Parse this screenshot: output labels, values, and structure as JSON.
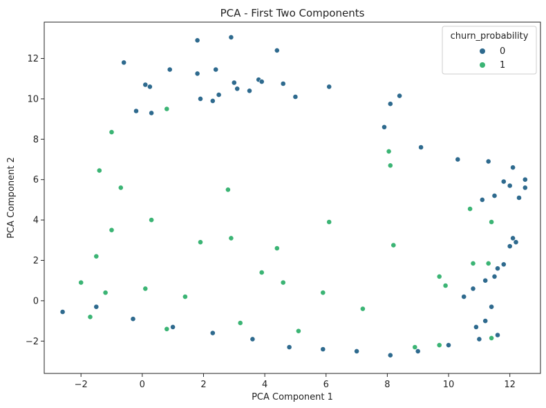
{
  "chart_data": {
    "type": "scatter",
    "title": "PCA - First Two Components",
    "xlabel": "PCA Component 1",
    "ylabel": "PCA Component 2",
    "xlim": [
      -3.2,
      13.0
    ],
    "ylim": [
      -3.6,
      13.8
    ],
    "x_ticks": [
      -2,
      0,
      2,
      4,
      6,
      8,
      10,
      12
    ],
    "y_ticks": [
      -2,
      0,
      2,
      4,
      6,
      8,
      10,
      12
    ],
    "grid": false,
    "legend": {
      "title": "churn_probability",
      "placement": "top-right",
      "entries": [
        {
          "label": "0",
          "color": "#2e6a8e"
        },
        {
          "label": "1",
          "color": "#3bb474"
        }
      ]
    },
    "series": [
      {
        "name": "0",
        "color": "#2e6a8e",
        "points": [
          [
            -0.6,
            11.8
          ],
          [
            1.8,
            12.9
          ],
          [
            2.9,
            13.05
          ],
          [
            4.4,
            12.4
          ],
          [
            0.9,
            11.45
          ],
          [
            1.8,
            11.25
          ],
          [
            2.4,
            11.45
          ],
          [
            3.8,
            10.95
          ],
          [
            3.9,
            10.85
          ],
          [
            4.6,
            10.75
          ],
          [
            0.1,
            10.7
          ],
          [
            0.25,
            10.6
          ],
          [
            3.0,
            10.8
          ],
          [
            3.1,
            10.5
          ],
          [
            3.5,
            10.4
          ],
          [
            6.1,
            10.6
          ],
          [
            8.4,
            10.15
          ],
          [
            8.1,
            9.75
          ],
          [
            1.9,
            10.0
          ],
          [
            2.3,
            9.9
          ],
          [
            2.5,
            10.2
          ],
          [
            5.0,
            10.1
          ],
          [
            -0.2,
            9.4
          ],
          [
            0.3,
            9.3
          ],
          [
            7.9,
            8.6
          ],
          [
            9.1,
            7.6
          ],
          [
            10.3,
            7.0
          ],
          [
            11.3,
            6.9
          ],
          [
            12.1,
            6.6
          ],
          [
            12.5,
            6.0
          ],
          [
            12.5,
            5.6
          ],
          [
            12.0,
            5.7
          ],
          [
            11.8,
            5.9
          ],
          [
            11.5,
            5.2
          ],
          [
            12.3,
            5.1
          ],
          [
            11.1,
            5.0
          ],
          [
            12.2,
            2.9
          ],
          [
            12.0,
            2.7
          ],
          [
            12.1,
            3.1
          ],
          [
            11.8,
            1.8
          ],
          [
            11.6,
            1.6
          ],
          [
            11.5,
            1.2
          ],
          [
            11.2,
            1.0
          ],
          [
            10.8,
            0.6
          ],
          [
            10.5,
            0.2
          ],
          [
            11.4,
            -0.3
          ],
          [
            11.2,
            -1.0
          ],
          [
            10.9,
            -1.3
          ],
          [
            -2.6,
            -0.55
          ],
          [
            -1.5,
            -0.3
          ],
          [
            -0.3,
            -0.9
          ],
          [
            1.0,
            -1.3
          ],
          [
            2.3,
            -1.6
          ],
          [
            3.6,
            -1.9
          ],
          [
            4.8,
            -2.3
          ],
          [
            5.9,
            -2.4
          ],
          [
            7.0,
            -2.5
          ],
          [
            8.1,
            -2.7
          ],
          [
            9.0,
            -2.5
          ],
          [
            10.0,
            -2.2
          ],
          [
            11.0,
            -1.9
          ],
          [
            11.6,
            -1.7
          ]
        ]
      },
      {
        "name": "1",
        "color": "#3bb474",
        "points": [
          [
            0.8,
            9.5
          ],
          [
            -1.0,
            8.35
          ],
          [
            8.05,
            7.4
          ],
          [
            8.1,
            6.7
          ],
          [
            -1.4,
            6.45
          ],
          [
            -0.7,
            5.6
          ],
          [
            2.8,
            5.5
          ],
          [
            10.7,
            4.55
          ],
          [
            11.4,
            3.9
          ],
          [
            6.1,
            3.9
          ],
          [
            0.3,
            4.0
          ],
          [
            -1.0,
            3.5
          ],
          [
            8.2,
            2.75
          ],
          [
            2.9,
            3.1
          ],
          [
            -1.5,
            2.2
          ],
          [
            -2.0,
            0.9
          ],
          [
            -1.2,
            0.4
          ],
          [
            0.1,
            0.6
          ],
          [
            1.4,
            0.2
          ],
          [
            3.9,
            1.4
          ],
          [
            4.6,
            0.9
          ],
          [
            5.9,
            0.4
          ],
          [
            7.2,
            -0.4
          ],
          [
            9.7,
            1.2
          ],
          [
            9.9,
            0.75
          ],
          [
            11.3,
            1.85
          ],
          [
            10.8,
            1.85
          ],
          [
            9.7,
            -2.2
          ],
          [
            8.9,
            -2.3
          ],
          [
            11.4,
            -1.85
          ],
          [
            5.1,
            -1.5
          ],
          [
            3.2,
            -1.1
          ],
          [
            0.8,
            -1.4
          ],
          [
            -1.7,
            -0.8
          ],
          [
            1.9,
            2.9
          ],
          [
            4.4,
            2.6
          ]
        ]
      }
    ]
  }
}
